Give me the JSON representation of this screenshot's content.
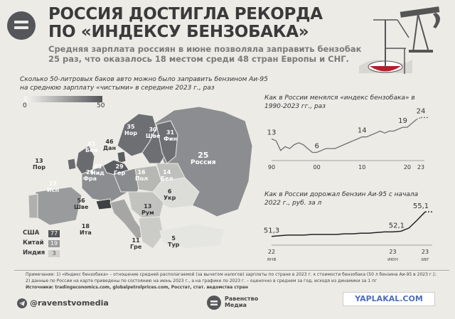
{
  "header": {
    "title_line1": "РОССИЯ ДОСТИГЛА РЕКОРДА",
    "title_line2": "ПО «ИНДЕКСУ БЕНЗОБАКА»",
    "subtitle_line1": "Средняя зарплата россиян в июне позволяла заправить бензобак",
    "subtitle_line2": "25 раз, что оказалось 18 местом среди 48 стран Европы и СНГ."
  },
  "map": {
    "label_line1": "Сколько 50-литровых баков авто можно было заправить бензином Аи-95",
    "label_line2": "на среднюю зарплату «чистыми» в середине 2023 г., раз",
    "legend_min": "0",
    "legend_max": "50",
    "countries": [
      {
        "value": "25",
        "name": "Россия"
      },
      {
        "value": "35",
        "name": "Нор"
      },
      {
        "value": "30",
        "name": "Шве"
      },
      {
        "value": "31",
        "name": "Фин"
      },
      {
        "value": "46",
        "name": "Дан"
      },
      {
        "value": "41",
        "name": "Бел"
      },
      {
        "value": "45",
        "name": "Нид"
      },
      {
        "value": "29",
        "name": "Гер"
      },
      {
        "value": "26",
        "name": "Фра"
      },
      {
        "value": "16",
        "name": "Пол"
      },
      {
        "value": "14",
        "name": "Бел"
      },
      {
        "value": "6",
        "name": "Укр"
      },
      {
        "value": "13",
        "name": "Пор"
      },
      {
        "value": "22",
        "name": "Исп"
      },
      {
        "value": "56",
        "name": "Шве"
      },
      {
        "value": "18",
        "name": "Ита"
      },
      {
        "value": "13",
        "name": "Рум"
      },
      {
        "value": "11",
        "name": "Гре"
      },
      {
        "value": "5",
        "name": "Тур"
      }
    ],
    "comparison": [
      {
        "name": "США",
        "value": "77"
      },
      {
        "name": "Китай",
        "value": "19"
      },
      {
        "name": "Индия",
        "value": "3"
      }
    ]
  },
  "chart_data": [
    {
      "type": "line",
      "title": "Как в России менялся «индекс бензобака» в 1990-2023 гг., раз",
      "x": [
        1990,
        1991,
        1992,
        1993,
        1994,
        1995,
        1996,
        1997,
        1998,
        1999,
        2000,
        2001,
        2002,
        2003,
        2004,
        2005,
        2006,
        2007,
        2008,
        2009,
        2010,
        2011,
        2012,
        2013,
        2014,
        2015,
        2016,
        2017,
        2018,
        2019,
        2020,
        2021,
        2022,
        2023
      ],
      "values": [
        13,
        12,
        7,
        9,
        8,
        10,
        11,
        10,
        8,
        6,
        6,
        7,
        8,
        8,
        8,
        9,
        10,
        11,
        12,
        13,
        14,
        14,
        15,
        16,
        17,
        16,
        17,
        17,
        18,
        19,
        19,
        21,
        23,
        24
      ],
      "labels": [
        {
          "x": 1990,
          "text": "13"
        },
        {
          "x": 2000,
          "text": "6"
        },
        {
          "x": 2010,
          "text": "14"
        },
        {
          "x": 2019,
          "text": "19"
        },
        {
          "x": 2023,
          "text": "24"
        }
      ],
      "xticks": [
        "90",
        "00",
        "10",
        "20",
        "23"
      ],
      "ylim": [
        4,
        26
      ]
    },
    {
      "type": "line",
      "title": "Как в России дорожал бензин Аи-95 с начала 2022 г., руб. за л",
      "x": [
        0,
        1,
        2,
        3,
        4,
        5,
        6,
        7,
        8,
        9,
        10,
        11,
        12,
        13,
        14,
        15,
        16,
        17,
        18,
        19
      ],
      "values": [
        51.3,
        51.4,
        51.5,
        51.5,
        51.5,
        51.6,
        51.6,
        51.6,
        51.6,
        51.7,
        51.7,
        51.8,
        51.8,
        51.9,
        52.0,
        52.0,
        52.1,
        52.6,
        53.8,
        55.1
      ],
      "labels": [
        {
          "text": "51,3"
        },
        {
          "text": "52,1"
        },
        {
          "text": "55,1"
        }
      ],
      "xticks": [
        {
          "top": "22",
          "bottom": "янв"
        },
        {
          "top": "23",
          "bottom": "июн"
        },
        {
          "top": "23",
          "bottom": "авг"
        }
      ],
      "ylim": [
        50.5,
        56
      ]
    }
  ],
  "footnote": {
    "line1": "Примечание: 1) «Индекс бензобака» – отношение средней располагаемой (за вычетом налогов) зарплаты по стране в 2023 г. к стоимости бензобака (50 л бензина Аи-95 в 2023 г.);",
    "line2": "2) данные по России на карте приведены по состоянию на июнь 2023 г., а на графике по 2023 г. – оценочно в среднем за год, исходя из динамики за 1 пг",
    "line3": "Источники: tradingeconomics.com, globalpetrolprices.com, Росстат, стат. ведомства стран"
  },
  "footer": {
    "handle": "@ravenstvomedia",
    "media_line1": "Равенство",
    "media_line2": "Медиа",
    "watermark": "YAPLAKAL.COM"
  },
  "colors": {
    "dark": "#55565a",
    "mid": "#8c8d90",
    "light": "#cfcfcc",
    "bg": "#ecebe6",
    "accent": "#b0202c"
  }
}
